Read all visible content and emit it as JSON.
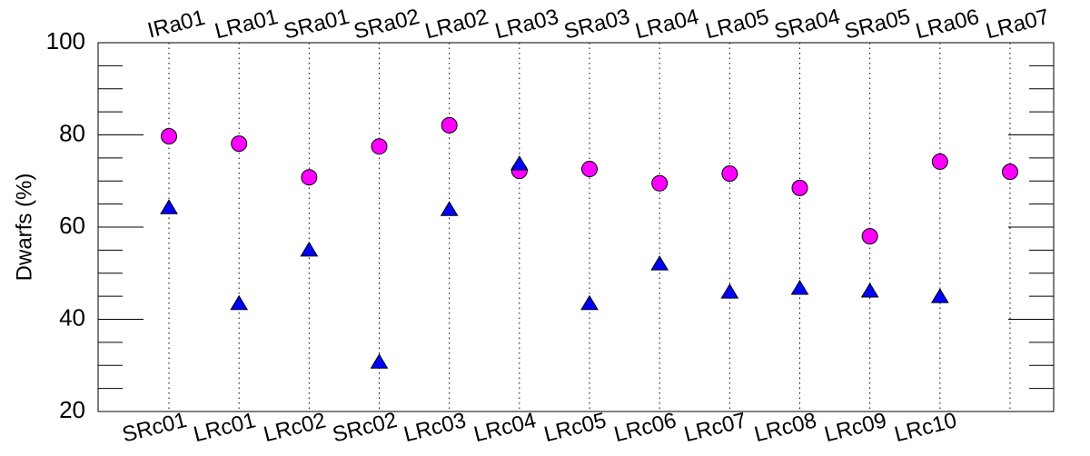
{
  "chart_data": {
    "type": "scatter",
    "y_label": "Dwarfs (%)",
    "top_categories": [
      "IRa01",
      "LRa01",
      "SRa01",
      "SRa02",
      "LRa02",
      "LRa03",
      "SRa03",
      "LRa04",
      "LRa05",
      "SRa04",
      "SRa05",
      "LRa06",
      "LRa07"
    ],
    "categories": [
      "SRc01",
      "LRc01",
      "LRc02",
      "SRc02",
      "LRc03",
      "LRc04",
      "LRc05",
      "LRc06",
      "LRc07",
      "LRc08",
      "LRc09",
      "LRc10",
      null
    ],
    "series": [
      {
        "color": "#ff00ff",
        "marker": "circle",
        "values": [
          79.7,
          78.1,
          70.8,
          77.5,
          82.1,
          72.2,
          72.6,
          69.5,
          71.6,
          68.5,
          58.0,
          74.2,
          72.0
        ]
      },
      {
        "color": "#0000ff",
        "marker": "triangle",
        "values": [
          64.1,
          43.3,
          54.9,
          30.6,
          63.7,
          73.6,
          43.3,
          51.9,
          45.8,
          46.6,
          46.0,
          44.8,
          null
        ]
      }
    ],
    "ylim": [
      20,
      100
    ],
    "yticks": [
      20,
      40,
      60,
      80,
      100
    ],
    "yminorticks": [
      25,
      30,
      35,
      45,
      50,
      55,
      65,
      70,
      75,
      85,
      90,
      95
    ],
    "grid": "dotted-vertical"
  }
}
